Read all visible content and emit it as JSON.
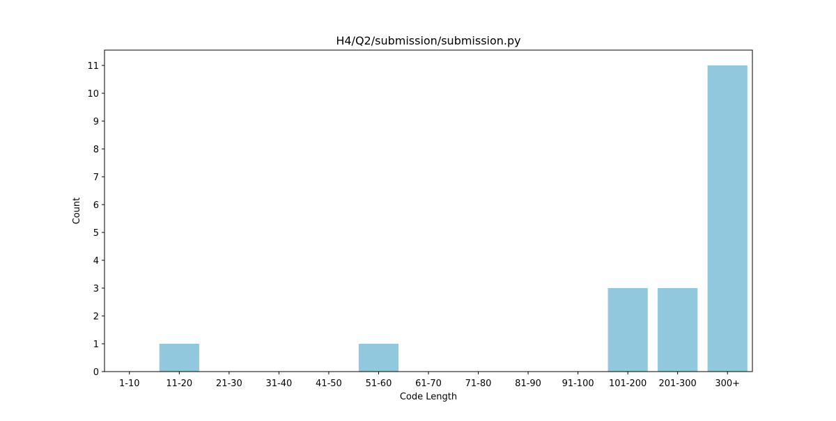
{
  "chart_data": {
    "type": "bar",
    "title": "H4/Q2/submission/submission.py",
    "xlabel": "Code Length",
    "ylabel": "Count",
    "categories": [
      "1-10",
      "11-20",
      "21-30",
      "31-40",
      "41-50",
      "51-60",
      "61-70",
      "71-80",
      "81-90",
      "91-100",
      "101-200",
      "201-300",
      "300+"
    ],
    "values": [
      0,
      1,
      0,
      0,
      0,
      1,
      0,
      0,
      0,
      0,
      3,
      3,
      11
    ],
    "ylim": [
      0,
      11.55
    ],
    "yticks": [
      0,
      1,
      2,
      3,
      4,
      5,
      6,
      7,
      8,
      9,
      10,
      11
    ],
    "grid": false,
    "legend": "none",
    "colors": {
      "bar": "#92c8dd",
      "axes": "#000000",
      "background": "#ffffff"
    }
  }
}
